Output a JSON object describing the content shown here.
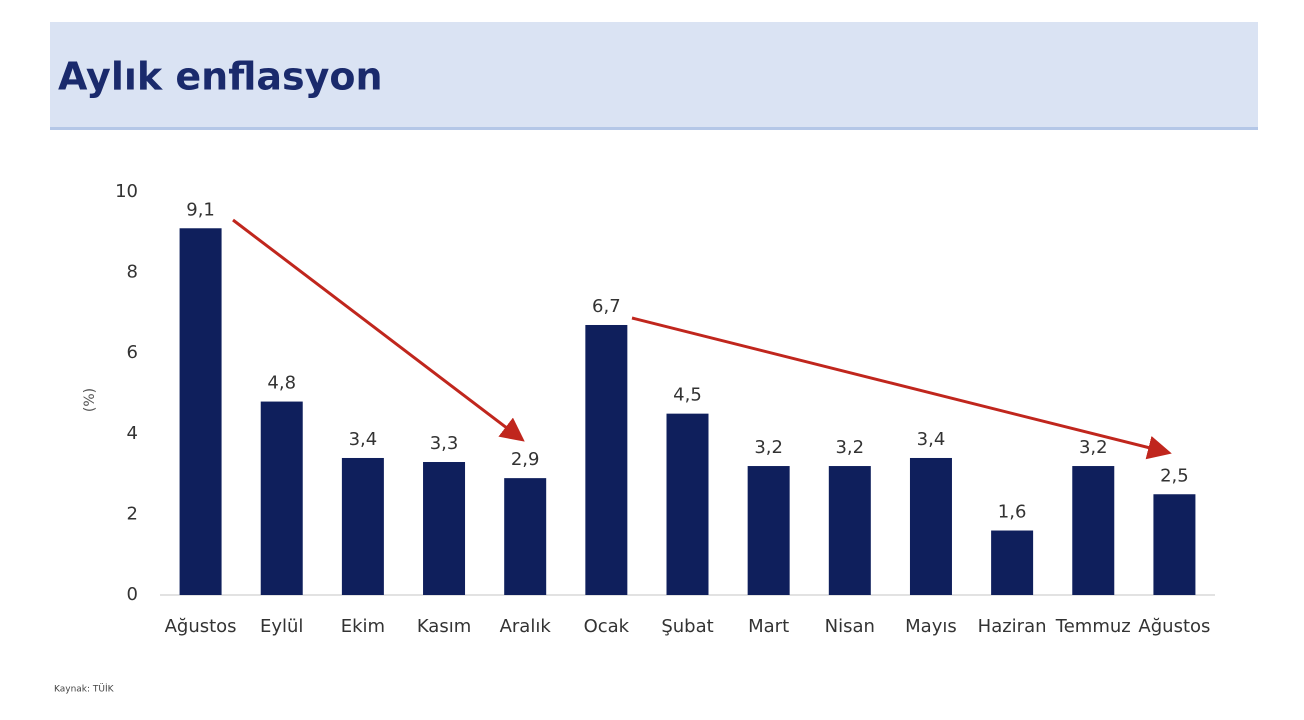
{
  "title": "Aylık enflasyon",
  "source": "Kaynak: TÜİK",
  "chart_data": {
    "type": "bar",
    "y_label": "(%)",
    "categories": [
      "Ağustos",
      "Eylül",
      "Ekim",
      "Kasım",
      "Aralık",
      "Ocak",
      "Şubat",
      "Mart",
      "Nisan",
      "Mayıs",
      "Haziran",
      "Temmuz",
      "Ağustos"
    ],
    "values": [
      9.1,
      4.8,
      3.4,
      3.3,
      2.9,
      6.7,
      4.5,
      3.2,
      3.2,
      3.4,
      1.6,
      3.2,
      2.5
    ],
    "value_labels": [
      "9,1",
      "4,8",
      "3,4",
      "3,3",
      "2,9",
      "6,7",
      "4,5",
      "3,2",
      "3,2",
      "3,4",
      "1,6",
      "3,2",
      "2,5"
    ],
    "color": "#0f1f5c",
    "ylim": [
      0,
      10
    ],
    "yticks": [
      0,
      2,
      4,
      6,
      8,
      10
    ],
    "grid": false
  }
}
